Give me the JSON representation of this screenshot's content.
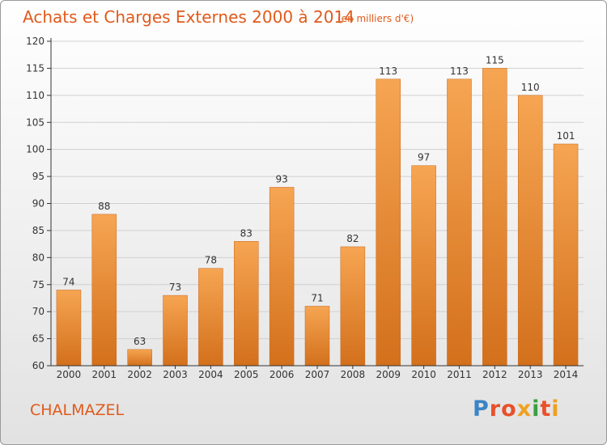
{
  "header": {
    "title": "Achats et Charges Externes 2000 à 2014",
    "subtitle": "(en milliers d'€)"
  },
  "footer": {
    "commune": "CHALMAZEL",
    "logo_text": "Proxiti",
    "logo_colors": [
      "#3a84c6",
      "#e8502a",
      "#e8502a",
      "#f0a020",
      "#3aa040",
      "#e8502a",
      "#f0a020"
    ]
  },
  "colors": {
    "bar_top": "#f6a552",
    "bar_bottom": "#d3701c",
    "title": "#e05a1c",
    "axis": "#333333",
    "grid": "#d0d0d0"
  },
  "chart_data": {
    "type": "bar",
    "categories": [
      "2000",
      "2001",
      "2002",
      "2003",
      "2004",
      "2005",
      "2006",
      "2007",
      "2008",
      "2009",
      "2010",
      "2011",
      "2012",
      "2013",
      "2014"
    ],
    "values": [
      74,
      88,
      63,
      73,
      78,
      83,
      93,
      71,
      82,
      113,
      97,
      113,
      115,
      110,
      101
    ],
    "ylim": [
      60,
      120
    ],
    "yticks": [
      60,
      65,
      70,
      75,
      80,
      85,
      90,
      95,
      100,
      105,
      110,
      115,
      120
    ],
    "data_labels": true,
    "grid": true
  }
}
